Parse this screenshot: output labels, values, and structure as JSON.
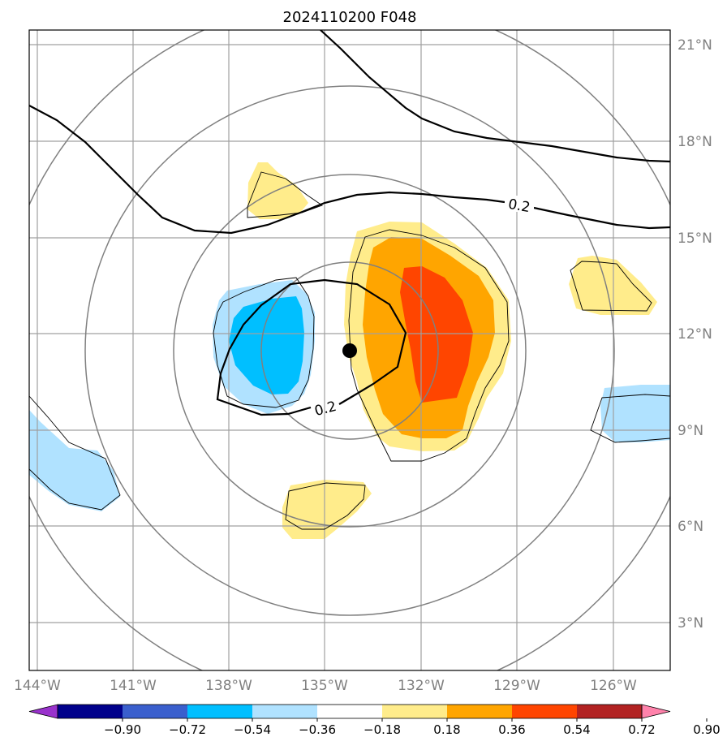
{
  "title": "2024110200 F048",
  "lat_labels": [
    "21°N",
    "18°N",
    "15°N",
    "12°N",
    "9°N",
    "6°N",
    "3°N"
  ],
  "lon_labels": [
    "144°W",
    "141°W",
    "138°W",
    "135°W",
    "132°W",
    "129°W",
    "126°W"
  ],
  "contour_labels": [
    "0.2",
    "0.2"
  ],
  "colorbar": {
    "labels": [
      "−0.90",
      "−0.72",
      "−0.54",
      "−0.36",
      "−0.18",
      "0.18",
      "0.36",
      "0.54",
      "0.72",
      "0.90"
    ],
    "colors": [
      "#9932cc",
      "#00008b",
      "#3a5fcd",
      "#00bfff",
      "#b0e2ff",
      "#ffffff",
      "#ffec8b",
      "#ffa500",
      "#ff4500",
      "#b22222",
      "#ff82ab"
    ],
    "extend": "both"
  },
  "colors": {
    "fill_light_blue": "#b0e2ff",
    "fill_deep_sky_blue": "#00bfff",
    "fill_light_yellow": "#ffec8b",
    "fill_orange": "#ffa500",
    "fill_orange_red": "#ff4500",
    "grid": "#a0a0a0",
    "range_rings": "#808080",
    "storm_center": "#000000"
  },
  "storm_center": {
    "lon": -134.3,
    "lat": 11.5
  }
}
